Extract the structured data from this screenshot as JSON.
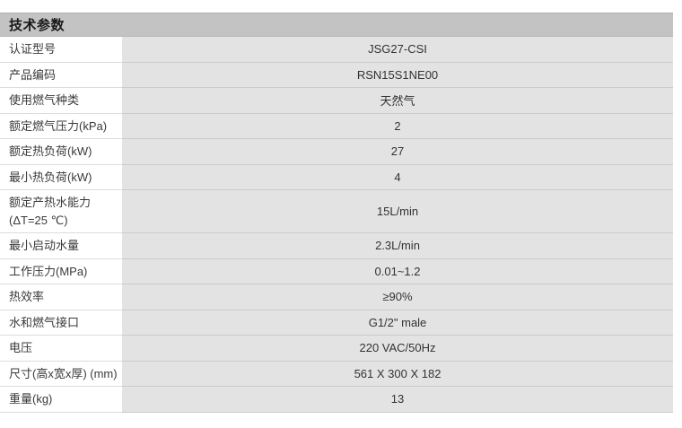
{
  "table": {
    "title": "技术参数",
    "rows": [
      {
        "label": "认证型号",
        "value": "JSG27-CSI"
      },
      {
        "label": "产品编码",
        "value": "RSN15S1NE00"
      },
      {
        "label": "使用燃气种类",
        "value": "天然气"
      },
      {
        "label": "额定燃气压力(kPa)",
        "value": "2"
      },
      {
        "label": "额定热负荷(kW)",
        "value": "27"
      },
      {
        "label": "最小热负荷(kW)",
        "value": "4"
      },
      {
        "label": "额定产热水能力\n(ΔT=25 ℃)",
        "value": "15L/min"
      },
      {
        "label": "最小启动水量",
        "value": "2.3L/min"
      },
      {
        "label": "工作压力(MPa)",
        "value": "0.01~1.2"
      },
      {
        "label": "热效率",
        "value": "≥90%"
      },
      {
        "label": "水和燃气接口",
        "value": "G1/2\" male"
      },
      {
        "label": "电压",
        "value": "220 VAC/50Hz"
      },
      {
        "label": "尺寸(高x宽x厚) (mm)",
        "value": "561 X 300 X 182"
      },
      {
        "label": "重量(kg)",
        "value": "13"
      }
    ]
  },
  "colors": {
    "header_bg": "#c3c3c3",
    "value_column_bg": "#e3e3e3",
    "label_column_bg": "#ffffff",
    "text": "#333333"
  }
}
